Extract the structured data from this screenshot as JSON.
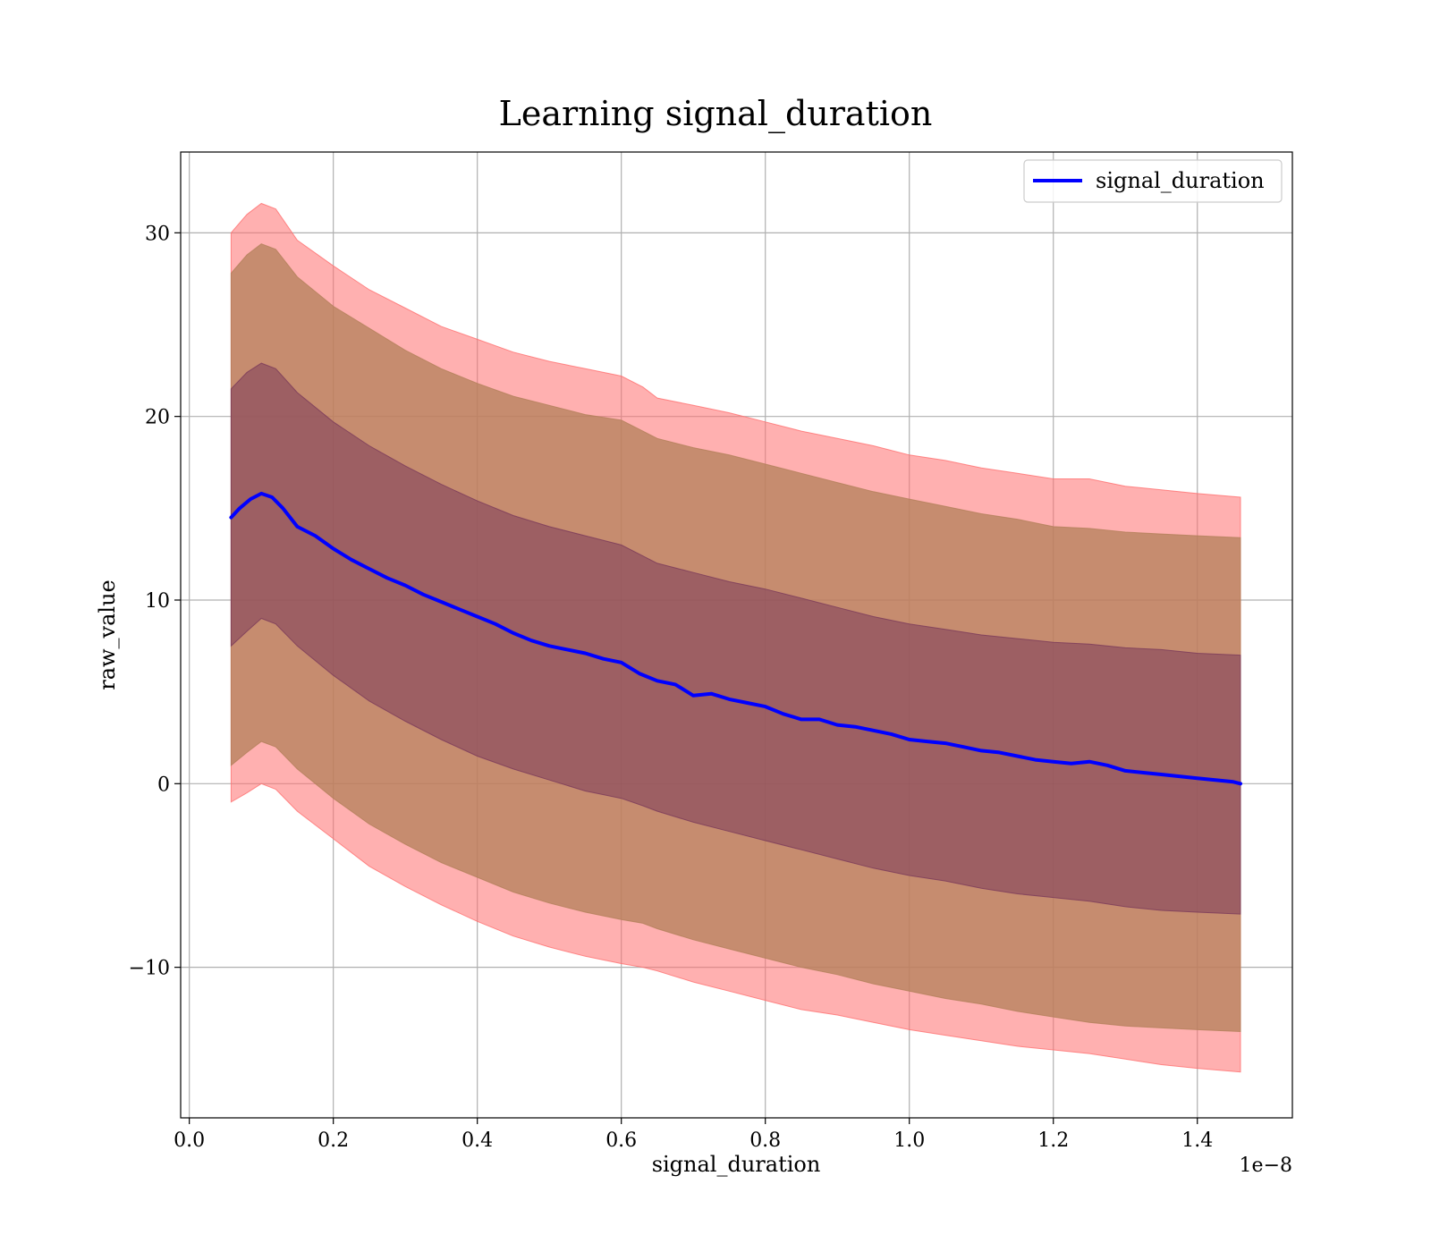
{
  "chart_data": {
    "type": "line",
    "title": "Learning signal_duration",
    "xlabel": "signal_duration",
    "ylabel": "raw_value",
    "x_offset_label": "1e−8",
    "x_tick_labels": [
      "0.0",
      "0.2",
      "0.4",
      "0.6",
      "0.8",
      "1.0",
      "1.2",
      "1.4"
    ],
    "y_tick_labels": [
      "−10",
      "0",
      "10",
      "20",
      "30"
    ],
    "x_ticks": [
      0.0,
      0.2,
      0.4,
      0.6,
      0.8,
      1.0,
      1.2,
      1.4
    ],
    "y_ticks": [
      -10,
      0,
      10,
      20,
      30
    ],
    "xlim": [
      -0.012,
      1.532
    ],
    "ylim": [
      -18.2,
      34.4
    ],
    "x_scale_note": "x values in units of 1e-8",
    "grid": true,
    "legend_position": "top-right",
    "series": [
      {
        "name": "signal_duration",
        "color": "#0000ff",
        "x": [
          0.058,
          0.07,
          0.085,
          0.1,
          0.115,
          0.13,
          0.15,
          0.175,
          0.2,
          0.225,
          0.25,
          0.275,
          0.3,
          0.325,
          0.35,
          0.375,
          0.4,
          0.425,
          0.45,
          0.475,
          0.5,
          0.525,
          0.55,
          0.575,
          0.6,
          0.625,
          0.65,
          0.675,
          0.7,
          0.725,
          0.75,
          0.775,
          0.8,
          0.825,
          0.85,
          0.875,
          0.9,
          0.925,
          0.95,
          0.975,
          1.0,
          1.025,
          1.05,
          1.075,
          1.1,
          1.125,
          1.15,
          1.175,
          1.2,
          1.225,
          1.25,
          1.275,
          1.3,
          1.325,
          1.35,
          1.375,
          1.4,
          1.425,
          1.45,
          1.46
        ],
        "y": [
          14.5,
          15.0,
          15.5,
          15.8,
          15.6,
          15.0,
          14.0,
          13.5,
          12.8,
          12.2,
          11.7,
          11.2,
          10.8,
          10.3,
          9.9,
          9.5,
          9.1,
          8.7,
          8.2,
          7.8,
          7.5,
          7.3,
          7.1,
          6.8,
          6.6,
          6.0,
          5.6,
          5.4,
          4.8,
          4.9,
          4.6,
          4.4,
          4.2,
          3.8,
          3.5,
          3.5,
          3.2,
          3.1,
          2.9,
          2.7,
          2.4,
          2.3,
          2.2,
          2.0,
          1.8,
          1.7,
          1.5,
          1.3,
          1.2,
          1.1,
          1.2,
          1.0,
          0.7,
          0.6,
          0.5,
          0.4,
          0.3,
          0.2,
          0.1,
          0.0
        ]
      }
    ],
    "bands": [
      {
        "color": "#ff6f6f",
        "opacity": 0.55,
        "x": [
          0.058,
          0.08,
          0.1,
          0.12,
          0.15,
          0.2,
          0.25,
          0.3,
          0.35,
          0.4,
          0.45,
          0.5,
          0.55,
          0.6,
          0.63,
          0.65,
          0.7,
          0.75,
          0.8,
          0.85,
          0.9,
          0.95,
          1.0,
          1.05,
          1.1,
          1.15,
          1.2,
          1.25,
          1.3,
          1.35,
          1.4,
          1.46
        ],
        "upper": [
          30.0,
          31.0,
          31.6,
          31.3,
          29.6,
          28.2,
          26.9,
          25.9,
          24.9,
          24.2,
          23.5,
          23.0,
          22.6,
          22.2,
          21.6,
          21.0,
          20.6,
          20.2,
          19.7,
          19.2,
          18.8,
          18.4,
          17.9,
          17.6,
          17.2,
          16.9,
          16.6,
          16.6,
          16.2,
          16.0,
          15.8,
          15.6
        ],
        "lower": [
          -1.0,
          -0.5,
          0.0,
          -0.3,
          -1.5,
          -3.0,
          -4.5,
          -5.6,
          -6.6,
          -7.5,
          -8.3,
          -8.9,
          -9.4,
          -9.8,
          -10.0,
          -10.2,
          -10.8,
          -11.3,
          -11.8,
          -12.3,
          -12.6,
          -13.0,
          -13.4,
          -13.7,
          -14.0,
          -14.3,
          -14.5,
          -14.7,
          -15.0,
          -15.3,
          -15.5,
          -15.7
        ]
      },
      {
        "color": "#b3805a",
        "opacity": 0.75,
        "x": [
          0.058,
          0.08,
          0.1,
          0.12,
          0.15,
          0.2,
          0.25,
          0.3,
          0.35,
          0.4,
          0.45,
          0.5,
          0.55,
          0.6,
          0.63,
          0.65,
          0.7,
          0.75,
          0.8,
          0.85,
          0.9,
          0.95,
          1.0,
          1.05,
          1.1,
          1.15,
          1.2,
          1.25,
          1.3,
          1.35,
          1.4,
          1.46
        ],
        "upper": [
          27.8,
          28.8,
          29.4,
          29.1,
          27.6,
          26.0,
          24.8,
          23.6,
          22.6,
          21.8,
          21.1,
          20.6,
          20.1,
          19.8,
          19.2,
          18.8,
          18.3,
          17.9,
          17.4,
          16.9,
          16.4,
          15.9,
          15.5,
          15.1,
          14.7,
          14.4,
          14.0,
          13.9,
          13.7,
          13.6,
          13.5,
          13.4
        ],
        "lower": [
          1.0,
          1.7,
          2.3,
          2.0,
          0.8,
          -0.8,
          -2.2,
          -3.3,
          -4.3,
          -5.1,
          -5.9,
          -6.5,
          -7.0,
          -7.4,
          -7.6,
          -7.9,
          -8.5,
          -9.0,
          -9.5,
          -10.0,
          -10.4,
          -10.9,
          -11.3,
          -11.7,
          -12.0,
          -12.4,
          -12.7,
          -13.0,
          -13.2,
          -13.3,
          -13.4,
          -13.5
        ]
      },
      {
        "color": "#7b3a5a",
        "opacity": 0.55,
        "x": [
          0.058,
          0.08,
          0.1,
          0.12,
          0.15,
          0.2,
          0.25,
          0.3,
          0.35,
          0.4,
          0.45,
          0.5,
          0.55,
          0.6,
          0.63,
          0.65,
          0.7,
          0.75,
          0.8,
          0.85,
          0.9,
          0.95,
          1.0,
          1.05,
          1.1,
          1.15,
          1.2,
          1.25,
          1.3,
          1.35,
          1.4,
          1.46
        ],
        "upper": [
          21.5,
          22.4,
          22.9,
          22.6,
          21.3,
          19.7,
          18.4,
          17.3,
          16.3,
          15.4,
          14.6,
          14.0,
          13.5,
          13.0,
          12.4,
          12.0,
          11.5,
          11.0,
          10.6,
          10.1,
          9.6,
          9.1,
          8.7,
          8.4,
          8.1,
          7.9,
          7.7,
          7.6,
          7.4,
          7.3,
          7.1,
          7.0
        ],
        "lower": [
          7.5,
          8.3,
          9.0,
          8.7,
          7.5,
          5.9,
          4.5,
          3.4,
          2.4,
          1.5,
          0.8,
          0.2,
          -0.4,
          -0.8,
          -1.2,
          -1.5,
          -2.1,
          -2.6,
          -3.1,
          -3.6,
          -4.1,
          -4.6,
          -5.0,
          -5.3,
          -5.7,
          -6.0,
          -6.2,
          -6.4,
          -6.7,
          -6.9,
          -7.0,
          -7.1
        ]
      }
    ]
  }
}
